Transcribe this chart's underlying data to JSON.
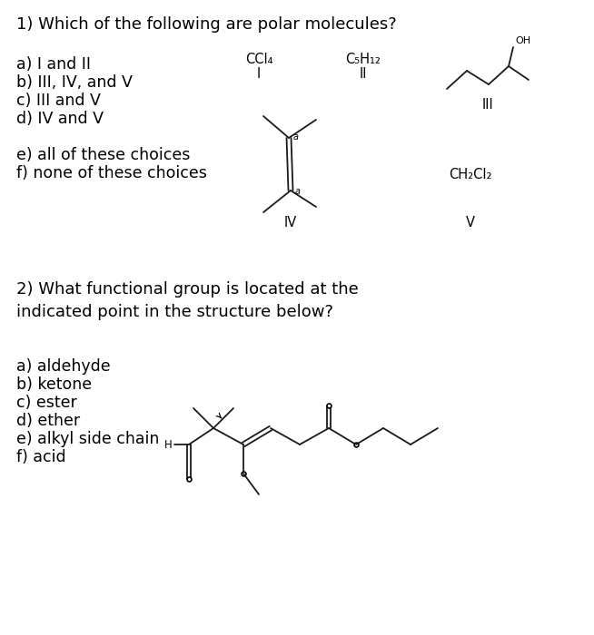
{
  "bg_color": "#ffffff",
  "text_color": "#000000",
  "title1": "1) Which of the following are polar molecules?",
  "q1_choices": [
    "a) I and II",
    "b) III, IV, and V",
    "c) III and V",
    "d) IV and V",
    "e) all of these choices",
    "f) none of these choices"
  ],
  "title2": "2) What functional group is located at the\nindicated point in the structure below?",
  "q2_choices": [
    "a) aldehyde",
    "b) ketone",
    "c) ester",
    "d) ether",
    "e) alkyl side chain",
    "f) acid"
  ],
  "mol1_label_top": "CCl₄",
  "mol1_label_bot": "I",
  "mol2_label_top": "C₅H₁₂",
  "mol2_label_bot": "II",
  "mol3_label_bot": "III",
  "mol4_label_bot": "IV",
  "mol5_label": "CH₂Cl₂",
  "mol5_label_bot": "V"
}
